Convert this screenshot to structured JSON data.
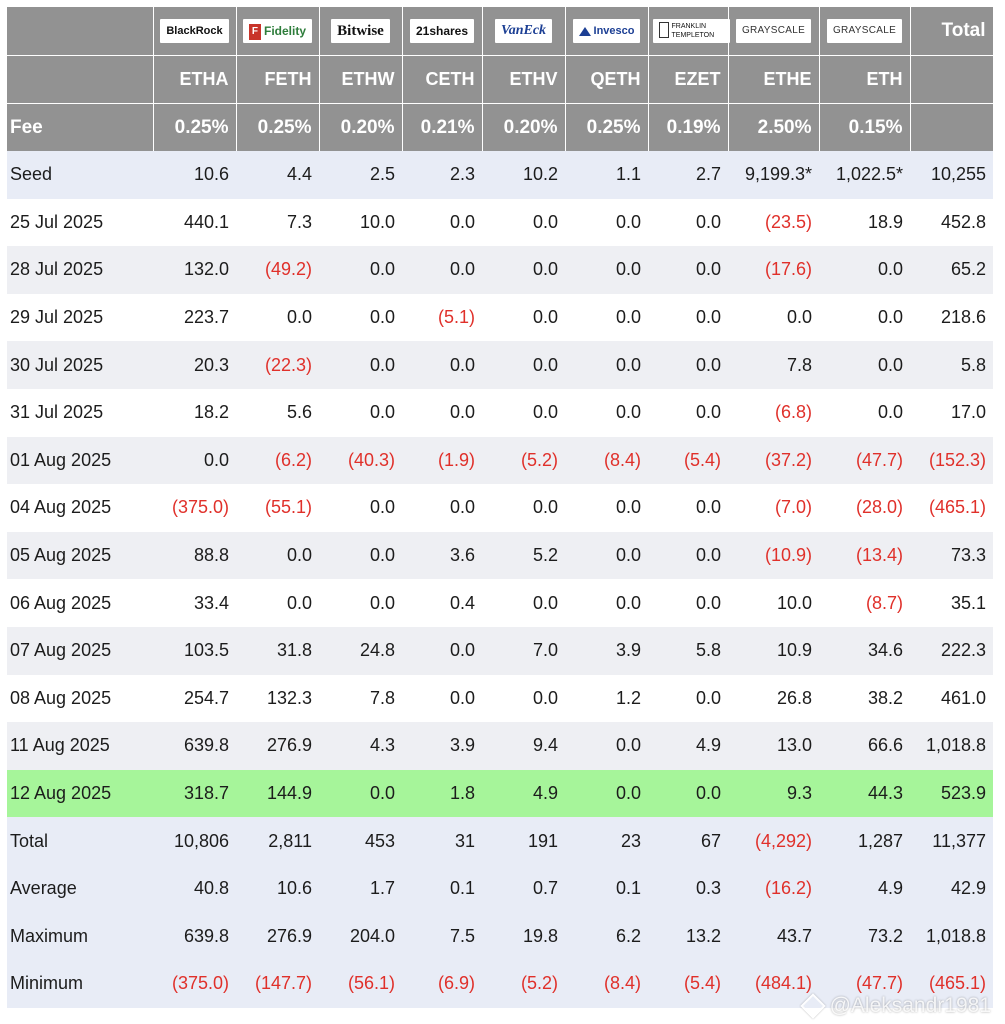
{
  "issuers": [
    {
      "logo": "BlackRock",
      "ticker": "ETHA",
      "fee": "0.25%"
    },
    {
      "logo": "Fidelity",
      "ticker": "FETH",
      "fee": "0.25%"
    },
    {
      "logo": "Bitwise",
      "ticker": "ETHW",
      "fee": "0.20%"
    },
    {
      "logo": "21shares",
      "ticker": "CETH",
      "fee": "0.21%"
    },
    {
      "logo": "VanEck",
      "ticker": "ETHV",
      "fee": "0.20%"
    },
    {
      "logo": "Invesco",
      "ticker": "QETH",
      "fee": "0.25%"
    },
    {
      "logo": "FRANKLIN TEMPLETON",
      "ticker": "EZET",
      "fee": "0.19%"
    },
    {
      "logo": "GRAYSCALE",
      "ticker": "ETHE",
      "fee": "2.50%"
    },
    {
      "logo": "GRAYSCALE",
      "ticker": "ETH",
      "fee": "0.15%"
    }
  ],
  "header": {
    "total_label": "Total",
    "fee_label": "Fee"
  },
  "rows": [
    {
      "label": "Seed",
      "values": [
        "10.6",
        "4.4",
        "2.5",
        "2.3",
        "10.2",
        "1.1",
        "2.7",
        "9,199.3*",
        "1,022.5*",
        "10,255"
      ]
    },
    {
      "label": "25 Jul 2025",
      "values": [
        "440.1",
        "7.3",
        "10.0",
        "0.0",
        "0.0",
        "0.0",
        "0.0",
        "(23.5)",
        "18.9",
        "452.8"
      ]
    },
    {
      "label": "28 Jul 2025",
      "values": [
        "132.0",
        "(49.2)",
        "0.0",
        "0.0",
        "0.0",
        "0.0",
        "0.0",
        "(17.6)",
        "0.0",
        "65.2"
      ]
    },
    {
      "label": "29 Jul 2025",
      "values": [
        "223.7",
        "0.0",
        "0.0",
        "(5.1)",
        "0.0",
        "0.0",
        "0.0",
        "0.0",
        "0.0",
        "218.6"
      ]
    },
    {
      "label": "30 Jul 2025",
      "values": [
        "20.3",
        "(22.3)",
        "0.0",
        "0.0",
        "0.0",
        "0.0",
        "0.0",
        "7.8",
        "0.0",
        "5.8"
      ]
    },
    {
      "label": "31 Jul 2025",
      "values": [
        "18.2",
        "5.6",
        "0.0",
        "0.0",
        "0.0",
        "0.0",
        "0.0",
        "(6.8)",
        "0.0",
        "17.0"
      ]
    },
    {
      "label": "01 Aug 2025",
      "values": [
        "0.0",
        "(6.2)",
        "(40.3)",
        "(1.9)",
        "(5.2)",
        "(8.4)",
        "(5.4)",
        "(37.2)",
        "(47.7)",
        "(152.3)"
      ]
    },
    {
      "label": "04 Aug 2025",
      "values": [
        "(375.0)",
        "(55.1)",
        "0.0",
        "0.0",
        "0.0",
        "0.0",
        "0.0",
        "(7.0)",
        "(28.0)",
        "(465.1)"
      ]
    },
    {
      "label": "05 Aug 2025",
      "values": [
        "88.8",
        "0.0",
        "0.0",
        "3.6",
        "5.2",
        "0.0",
        "0.0",
        "(10.9)",
        "(13.4)",
        "73.3"
      ]
    },
    {
      "label": "06 Aug 2025",
      "values": [
        "33.4",
        "0.0",
        "0.0",
        "0.4",
        "0.0",
        "0.0",
        "0.0",
        "10.0",
        "(8.7)",
        "35.1"
      ]
    },
    {
      "label": "07 Aug 2025",
      "values": [
        "103.5",
        "31.8",
        "24.8",
        "0.0",
        "7.0",
        "3.9",
        "5.8",
        "10.9",
        "34.6",
        "222.3"
      ]
    },
    {
      "label": "08 Aug 2025",
      "values": [
        "254.7",
        "132.3",
        "7.8",
        "0.0",
        "0.0",
        "1.2",
        "0.0",
        "26.8",
        "38.2",
        "461.0"
      ]
    },
    {
      "label": "11 Aug 2025",
      "values": [
        "639.8",
        "276.9",
        "4.3",
        "3.9",
        "9.4",
        "0.0",
        "4.9",
        "13.0",
        "66.6",
        "1,018.8"
      ]
    },
    {
      "label": "12 Aug 2025",
      "values": [
        "318.7",
        "144.9",
        "0.0",
        "1.8",
        "4.9",
        "0.0",
        "0.0",
        "9.3",
        "44.3",
        "523.9"
      ]
    }
  ],
  "summary": [
    {
      "label": "Total",
      "values": [
        "10,806",
        "2,811",
        "453",
        "31",
        "191",
        "23",
        "67",
        "(4,292)",
        "1,287",
        "11,377"
      ]
    },
    {
      "label": "Average",
      "values": [
        "40.8",
        "10.6",
        "1.7",
        "0.1",
        "0.7",
        "0.1",
        "0.3",
        "(16.2)",
        "4.9",
        "42.9"
      ]
    },
    {
      "label": "Maximum",
      "values": [
        "639.8",
        "276.9",
        "204.0",
        "7.5",
        "19.8",
        "6.2",
        "13.2",
        "43.7",
        "73.2",
        "1,018.8"
      ]
    },
    {
      "label": "Minimum",
      "values": [
        "(375.0)",
        "(147.7)",
        "(56.1)",
        "(6.9)",
        "(5.2)",
        "(8.4)",
        "(5.4)",
        "(484.1)",
        "(47.7)",
        "(465.1)"
      ]
    }
  ],
  "watermark": "@Aleksandr1981",
  "colors": {
    "header_bg": "#929292",
    "shade_row": "#eeeff3",
    "summary_row": "#e8ecf6",
    "highlight_row": "#a6f59a",
    "negative": "#e0302a"
  }
}
